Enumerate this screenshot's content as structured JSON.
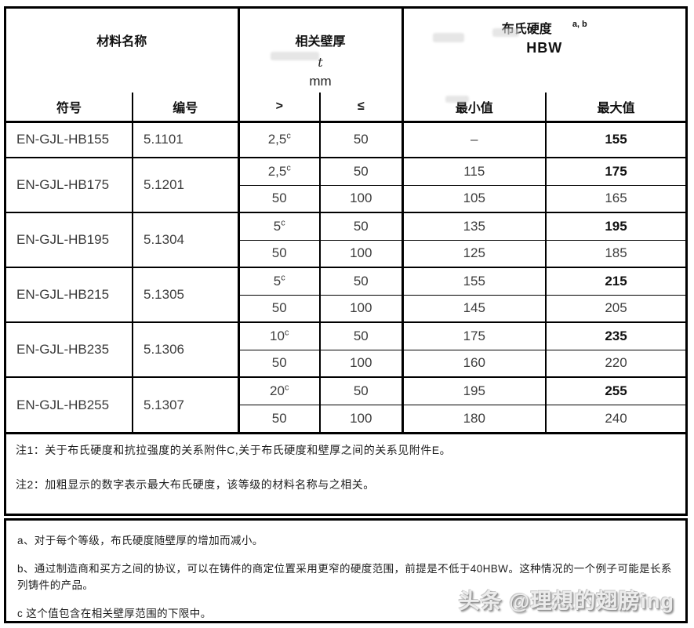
{
  "header": {
    "material_name": "材料名称",
    "symbol": "符号",
    "number": "编号",
    "wall": "相关壁厚",
    "t": "t",
    "mm": "mm",
    "gt": ">",
    "le": "≤",
    "hardness": "布氏硬度",
    "hardness_sup": "a, b",
    "hbw": "HBW",
    "min": "最小值",
    "max": "最大值"
  },
  "groups": [
    {
      "symbol": "EN-GJL-HB155",
      "number": "5.1101",
      "rows": [
        {
          "gt": "2,5",
          "gt_sup": "c",
          "le": "50",
          "min": "–",
          "max": "155"
        }
      ]
    },
    {
      "symbol": "EN-GJL-HB175",
      "number": "5.1201",
      "rows": [
        {
          "gt": "2,5",
          "gt_sup": "c",
          "le": "50",
          "min": "115",
          "max": "175"
        },
        {
          "gt": "50",
          "gt_sup": "",
          "le": "100",
          "min": "105",
          "max": "165"
        }
      ]
    },
    {
      "symbol": "EN-GJL-HB195",
      "number": "5.1304",
      "rows": [
        {
          "gt": "5",
          "gt_sup": "c",
          "le": "50",
          "min": "135",
          "max": "195"
        },
        {
          "gt": "50",
          "gt_sup": "",
          "le": "100",
          "min": "125",
          "max": "185"
        }
      ]
    },
    {
      "symbol": "EN-GJL-HB215",
      "number": "5.1305",
      "rows": [
        {
          "gt": "5",
          "gt_sup": "c",
          "le": "50",
          "min": "155",
          "max": "215"
        },
        {
          "gt": "50",
          "gt_sup": "",
          "le": "100",
          "min": "145",
          "max": "205"
        }
      ]
    },
    {
      "symbol": "EN-GJL-HB235",
      "number": "5.1306",
      "rows": [
        {
          "gt": "10",
          "gt_sup": "c",
          "le": "50",
          "min": "175",
          "max": "235"
        },
        {
          "gt": "50",
          "gt_sup": "",
          "le": "100",
          "min": "160",
          "max": "220"
        }
      ]
    },
    {
      "symbol": "EN-GJL-HB255",
      "number": "5.1307",
      "rows": [
        {
          "gt": "20",
          "gt_sup": "c",
          "le": "50",
          "min": "195",
          "max": "255"
        },
        {
          "gt": "50",
          "gt_sup": "",
          "le": "100",
          "min": "180",
          "max": "240"
        }
      ]
    }
  ],
  "notes": {
    "note1": "注1：关于布氏硬度和抗拉强度的关系附件C,关于布氏硬度和壁厚之间的关系见附件E。",
    "note2": "注2：加粗显示的数字表示最大布氏硬度，该等级的材料名称与之相关。"
  },
  "footnotes": {
    "a": "a、对于每个等级，布氏硬度随壁厚的增加而减小。",
    "b": "b、通过制造商和买方之间的协议，可以在铸件的商定位置采用更窄的硬度范围，前提是不低于40HBW。这种情况的一个例子可能是长系列铸件的产品。",
    "c": "c 这个值包含在相关壁厚范围的下限中。"
  },
  "watermark": "头条 @理想的翅膀ing",
  "colors": {
    "border": "#000000",
    "text": "#3d3d3d",
    "bold_text": "#111111",
    "watermark": "#ececec",
    "watermark_shadow": "#8f8f8f"
  }
}
